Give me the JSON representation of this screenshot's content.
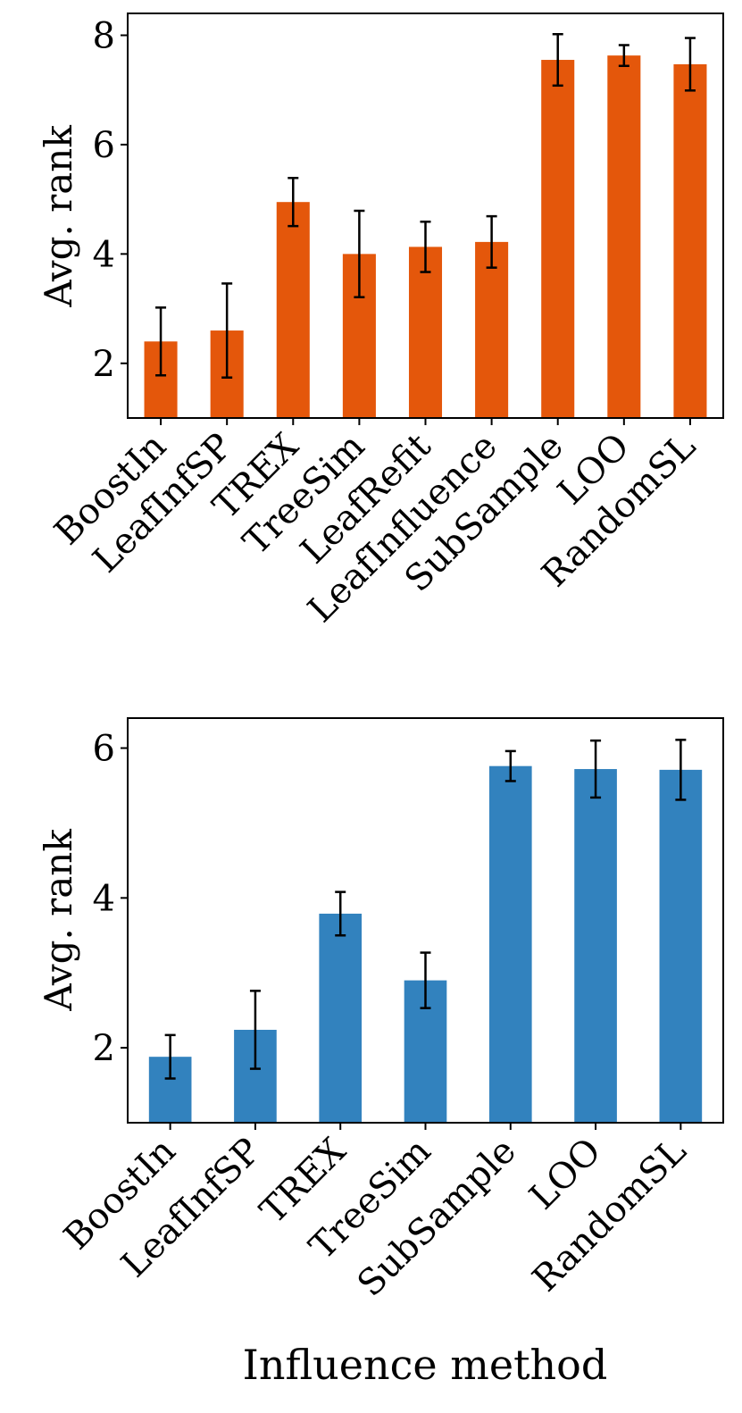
{
  "chart_data": [
    {
      "type": "bar",
      "categories": [
        "BoostIn",
        "LeafInfSP",
        "TREX",
        "TreeSim",
        "LeafRefit",
        "LeafInfluence",
        "SubSample",
        "LOO",
        "RandomSL"
      ],
      "values": [
        2.4,
        2.6,
        4.95,
        4.0,
        4.13,
        4.22,
        7.55,
        7.63,
        7.47
      ],
      "errors": [
        0.62,
        0.86,
        0.44,
        0.79,
        0.46,
        0.47,
        0.47,
        0.19,
        0.48
      ],
      "ylabel": "Avg. rank",
      "xlabel": "",
      "ylim": [
        1,
        8.4
      ],
      "yticks": [
        2,
        4,
        6,
        8
      ],
      "color": "#e4570b",
      "grid": false
    },
    {
      "type": "bar",
      "categories": [
        "BoostIn",
        "LeafInfSP",
        "TREX",
        "TreeSim",
        "SubSample",
        "LOO",
        "RandomSL"
      ],
      "values": [
        1.88,
        2.24,
        3.79,
        2.9,
        5.76,
        5.72,
        5.71
      ],
      "errors": [
        0.29,
        0.52,
        0.29,
        0.37,
        0.2,
        0.38,
        0.4
      ],
      "ylabel": "Avg. rank",
      "xlabel": "Influence method",
      "ylim": [
        1,
        6.4
      ],
      "yticks": [
        2,
        4,
        6
      ],
      "color": "#3282be",
      "grid": false
    }
  ]
}
